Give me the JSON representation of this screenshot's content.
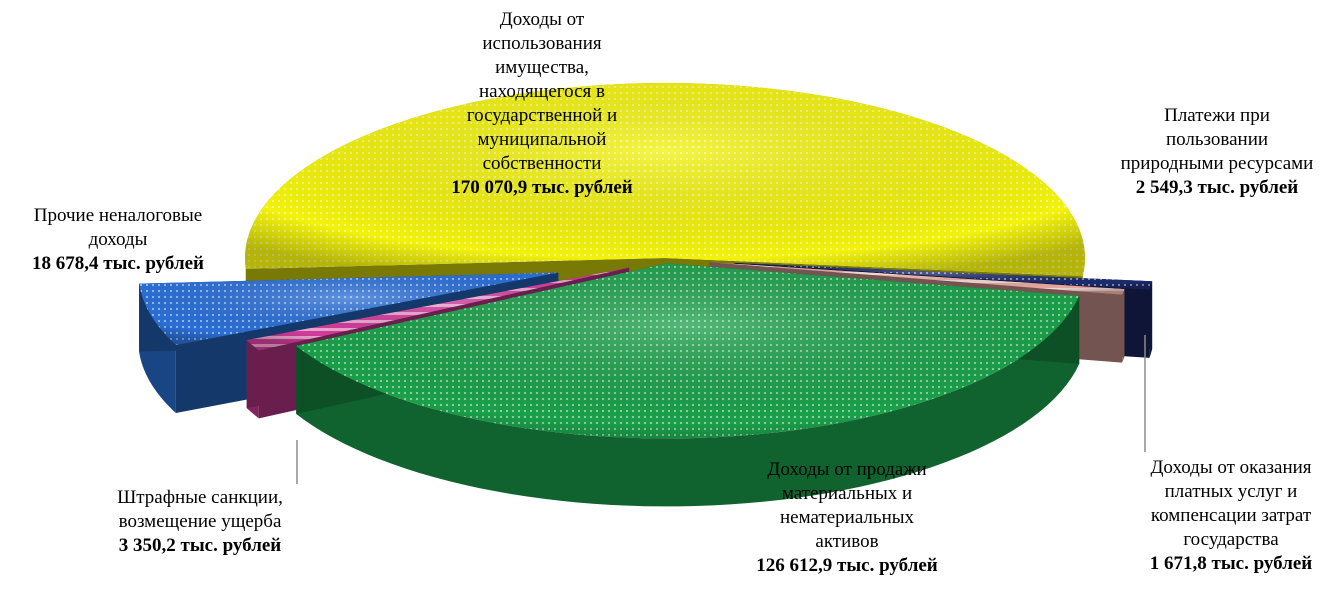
{
  "chart_data": {
    "type": "pie",
    "unit": "тыс. рублей",
    "slices": [
      {
        "key": "property",
        "name": "Доходы от\nиспользования\nимущества,\nнаходящегося в\nгосударственной и\nмуниципальной\nсобственности",
        "value": 170070.9,
        "value_label": "170 070,9 тыс. рублей",
        "color": "#f2f20a"
      },
      {
        "key": "natural",
        "name": "Платежи при\nпользовании\nприродными ресурсами",
        "value": 2549.3,
        "value_label": "2 549,3 тыс. рублей",
        "color": "#1b2a6b"
      },
      {
        "key": "services",
        "name": "Доходы от оказания\nплатных услуг и\nкомпенсации затрат\nгосударства",
        "value": 1671.8,
        "value_label": "1 671,8 тыс. рублей",
        "color": "#e8a8a0"
      },
      {
        "key": "sales",
        "name": "Доходы от продажи\nматериальных и\nнематериальных\nактивов",
        "value": 126612.9,
        "value_label": "126 612,9 тыс. рублей",
        "color": "#1aa04a"
      },
      {
        "key": "fines",
        "name": "Штрафные санкции,\nвозмещение ущерба",
        "value": 3350.2,
        "value_label": "3 350,2 тыс. рублей",
        "color": "#d23c9a"
      },
      {
        "key": "other",
        "name": "Прочие неналоговые\nдоходы",
        "value": 18678.4,
        "value_label": "18 678,4 тыс. рублей",
        "color": "#2a6fd6"
      }
    ]
  }
}
